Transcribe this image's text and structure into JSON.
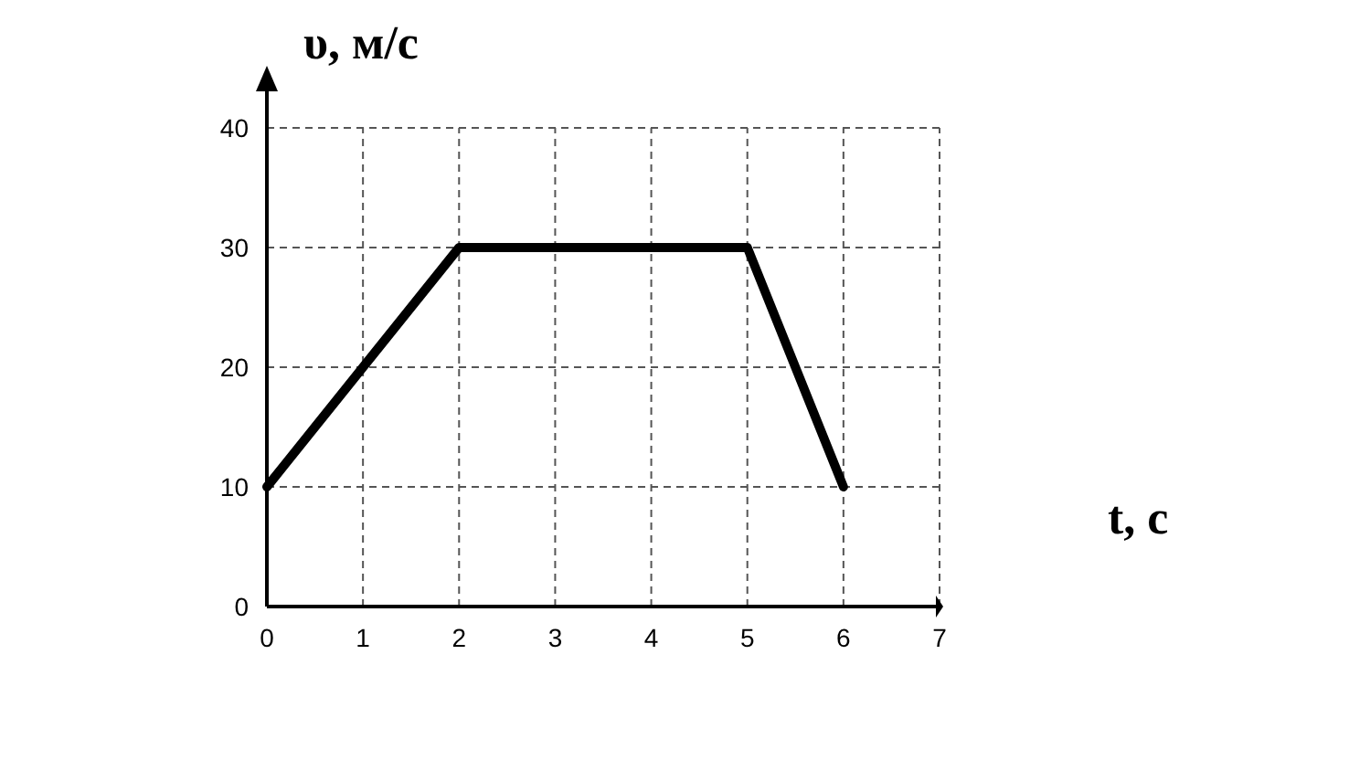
{
  "chart_data": {
    "type": "line",
    "xlabel": "t, с",
    "ylabel": "υ, м/с",
    "x": [
      0,
      2,
      5,
      6
    ],
    "series": [
      {
        "color": "#000000",
        "values": [
          10,
          30,
          30,
          10
        ]
      }
    ],
    "xlim": [
      0,
      7
    ],
    "ylim": [
      0,
      40
    ],
    "xticks": [
      0,
      1,
      2,
      3,
      4,
      5,
      6,
      7
    ],
    "yticks": [
      0,
      10,
      20,
      30,
      40
    ],
    "grid": true,
    "line_style": "solid",
    "marker": "none"
  }
}
